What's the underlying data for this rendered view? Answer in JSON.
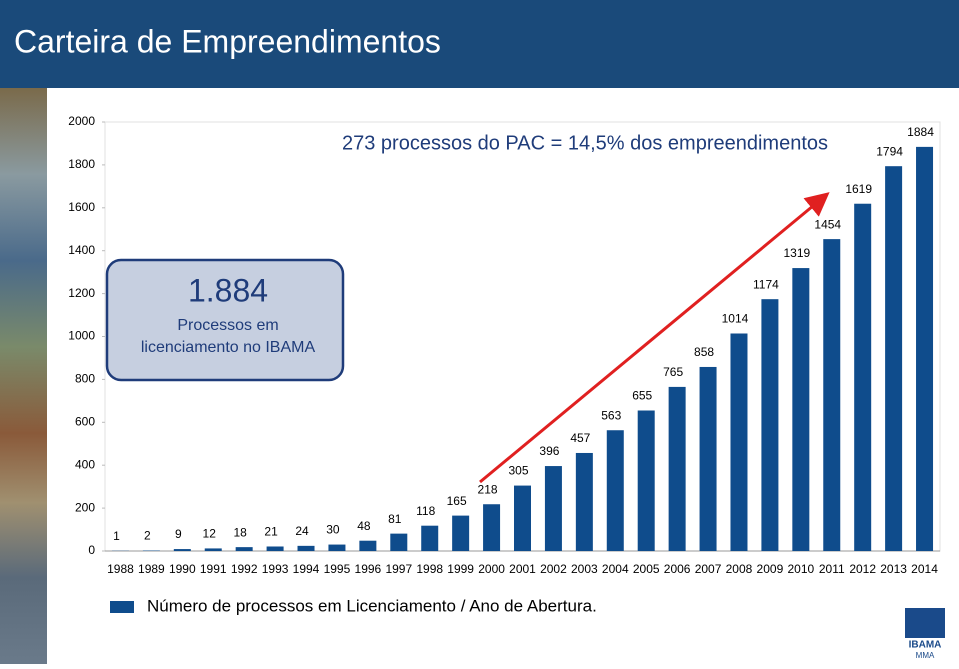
{
  "header": {
    "title": "Carteira de Empreendimentos"
  },
  "chart_data": {
    "type": "bar",
    "annotation": "273 processos do PAC = 14,5% dos empreendimentos",
    "categories": [
      "1988",
      "1989",
      "1990",
      "1991",
      "1992",
      "1993",
      "1994",
      "1995",
      "1996",
      "1997",
      "1998",
      "1999",
      "2000",
      "2001",
      "2002",
      "2003",
      "2004",
      "2005",
      "2006",
      "2007",
      "2008",
      "2009",
      "2010",
      "2011",
      "2012",
      "2013",
      "2014"
    ],
    "series": [
      {
        "name": "Número de processos em Licenciamento / Ano de Abertura.",
        "color": "#0f4c8c",
        "values": [
          1,
          2,
          9,
          12,
          18,
          21,
          24,
          30,
          48,
          81,
          118,
          165,
          218,
          305,
          396,
          457,
          563,
          655,
          765,
          858,
          1014,
          1174,
          1319,
          1454,
          1619,
          1794,
          1884
        ]
      }
    ],
    "ylim": [
      0,
      2000
    ],
    "yticks": [
      0,
      200,
      400,
      600,
      800,
      1000,
      1200,
      1400,
      1600,
      1800,
      2000
    ]
  },
  "callout": {
    "value": "1.884",
    "label": [
      "Processos em",
      "licenciamento no IBAMA"
    ]
  },
  "logo": {
    "name": "IBAMA",
    "sub": "MMA"
  }
}
